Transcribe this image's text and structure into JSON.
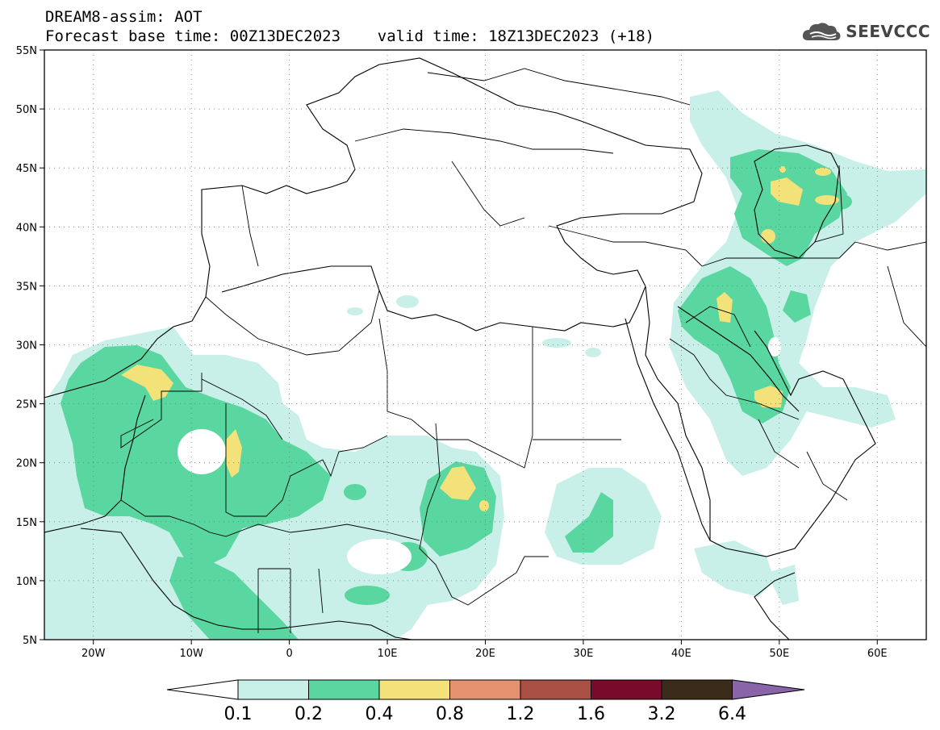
{
  "title": {
    "line1": "DREAM8-assim: AOT",
    "line2": "Forecast base time: 00Z13DEC2023    valid time: 18Z13DEC2023 (+18)"
  },
  "logo": {
    "icon": "cloud-icon",
    "text": "SEEVCCC"
  },
  "map": {
    "lon_range": [
      -25,
      65
    ],
    "lat_range": [
      5,
      55
    ],
    "grid": "dotted",
    "lat_labels": [
      "55N",
      "50N",
      "45N",
      "40N",
      "35N",
      "30N",
      "25N",
      "20N",
      "15N",
      "10N",
      "5N"
    ],
    "lon_labels": [
      "20W",
      "10W",
      "0",
      "10E",
      "20E",
      "30E",
      "40E",
      "50E",
      "60E"
    ]
  },
  "colorbar": {
    "labels": [
      "0.1",
      "0.2",
      "0.4",
      "0.8",
      "1.2",
      "1.6",
      "3.2",
      "6.4"
    ],
    "colors": [
      "#c8f0e8",
      "#5ad6a0",
      "#f3e27a",
      "#e69270",
      "#a94f44",
      "#7a0a2a",
      "#3b2b1b",
      "#8a64a8"
    ]
  }
}
